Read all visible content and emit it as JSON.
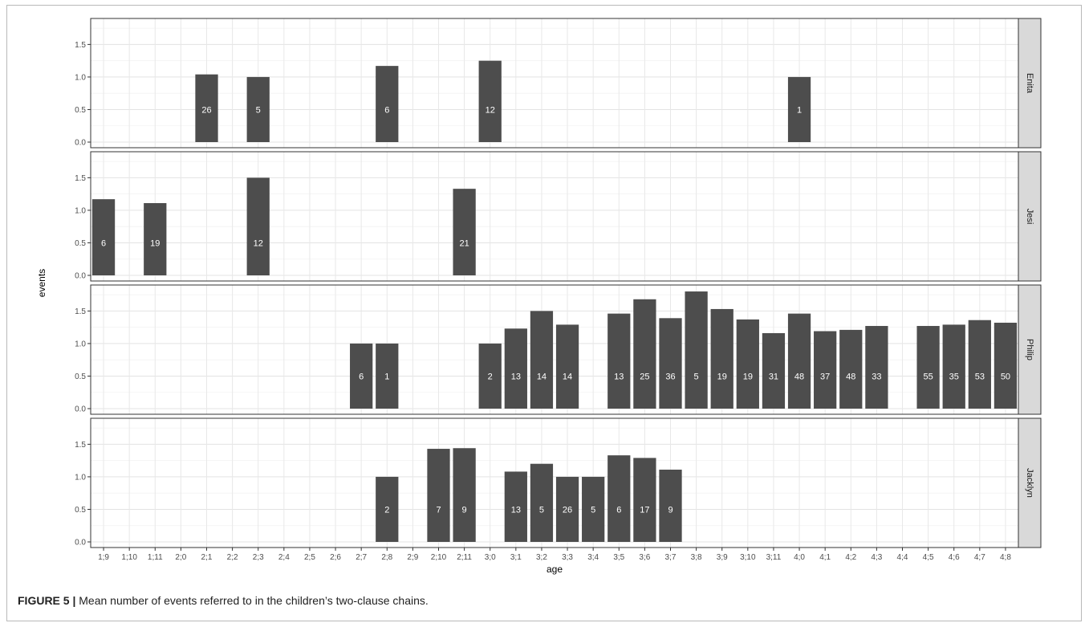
{
  "chart_data": {
    "type": "bar",
    "xlabel": "age",
    "ylabel": "events",
    "ylim": [
      0,
      1.85
    ],
    "yticks": [
      "0.0",
      "0.5",
      "1.0",
      "1.5"
    ],
    "ytick_values": [
      0,
      0.5,
      1.0,
      1.5
    ],
    "categories": [
      "1;9",
      "1;10",
      "1;11",
      "2;0",
      "2;1",
      "2;2",
      "2;3",
      "2;4",
      "2;5",
      "2;6",
      "2;7",
      "2;8",
      "2;9",
      "2;10",
      "2;11",
      "3;0",
      "3;1",
      "3;2",
      "3;3",
      "3;4",
      "3;5",
      "3;6",
      "3;7",
      "3;8",
      "3;9",
      "3;10",
      "3;11",
      "4;0",
      "4;1",
      "4;2",
      "4;3",
      "4;4",
      "4;5",
      "4;6",
      "4;7",
      "4;8"
    ],
    "bar_color": "#4d4d4d",
    "panel_bg": "#ffffff",
    "strip_bg": "#d9d9d9",
    "grid": true,
    "facets": [
      {
        "name": "Enita",
        "bars": [
          {
            "x": "2;1",
            "value": 1.04,
            "label": "26"
          },
          {
            "x": "2;3",
            "value": 1.0,
            "label": "5"
          },
          {
            "x": "2;8",
            "value": 1.17,
            "label": "6"
          },
          {
            "x": "3;0",
            "value": 1.25,
            "label": "12"
          },
          {
            "x": "4;0",
            "value": 1.0,
            "label": "1"
          }
        ]
      },
      {
        "name": "Jesi",
        "bars": [
          {
            "x": "1;9",
            "value": 1.17,
            "label": "6"
          },
          {
            "x": "1;11",
            "value": 1.11,
            "label": "19"
          },
          {
            "x": "2;3",
            "value": 1.5,
            "label": "12"
          },
          {
            "x": "2;11",
            "value": 1.33,
            "label": "21"
          }
        ]
      },
      {
        "name": "Philip",
        "bars": [
          {
            "x": "2;7",
            "value": 1.0,
            "label": "6"
          },
          {
            "x": "2;8",
            "value": 1.0,
            "label": "1"
          },
          {
            "x": "3;0",
            "value": 1.0,
            "label": "2"
          },
          {
            "x": "3;1",
            "value": 1.23,
            "label": "13"
          },
          {
            "x": "3;2",
            "value": 1.5,
            "label": "14"
          },
          {
            "x": "3;3",
            "value": 1.29,
            "label": "14"
          },
          {
            "x": "3;5",
            "value": 1.46,
            "label": "13"
          },
          {
            "x": "3;6",
            "value": 1.68,
            "label": "25"
          },
          {
            "x": "3;7",
            "value": 1.39,
            "label": "36"
          },
          {
            "x": "3;8",
            "value": 1.8,
            "label": "5"
          },
          {
            "x": "3;9",
            "value": 1.53,
            "label": "19"
          },
          {
            "x": "3;10",
            "value": 1.37,
            "label": "19"
          },
          {
            "x": "3;11",
            "value": 1.16,
            "label": "31"
          },
          {
            "x": "4;0",
            "value": 1.46,
            "label": "48"
          },
          {
            "x": "4;1",
            "value": 1.19,
            "label": "37"
          },
          {
            "x": "4;2",
            "value": 1.21,
            "label": "48"
          },
          {
            "x": "4;3",
            "value": 1.27,
            "label": "33"
          },
          {
            "x": "4;5",
            "value": 1.27,
            "label": "55"
          },
          {
            "x": "4;6",
            "value": 1.29,
            "label": "35"
          },
          {
            "x": "4;7",
            "value": 1.36,
            "label": "53"
          },
          {
            "x": "4;8",
            "value": 1.32,
            "label": "50"
          }
        ]
      },
      {
        "name": "Jacklyn",
        "bars": [
          {
            "x": "2;8",
            "value": 1.0,
            "label": "2"
          },
          {
            "x": "2;10",
            "value": 1.43,
            "label": "7"
          },
          {
            "x": "2;11",
            "value": 1.44,
            "label": "9"
          },
          {
            "x": "3;1",
            "value": 1.08,
            "label": "13"
          },
          {
            "x": "3;2",
            "value": 1.2,
            "label": "5"
          },
          {
            "x": "3;3",
            "value": 1.0,
            "label": "26"
          },
          {
            "x": "3;4",
            "value": 1.0,
            "label": "5"
          },
          {
            "x": "3;5",
            "value": 1.33,
            "label": "6"
          },
          {
            "x": "3;6",
            "value": 1.29,
            "label": "17"
          },
          {
            "x": "3;7",
            "value": 1.11,
            "label": "9"
          }
        ]
      }
    ]
  },
  "caption": {
    "label": "FIGURE 5 |",
    "text": " Mean number of events referred to in the children’s two-clause chains."
  }
}
